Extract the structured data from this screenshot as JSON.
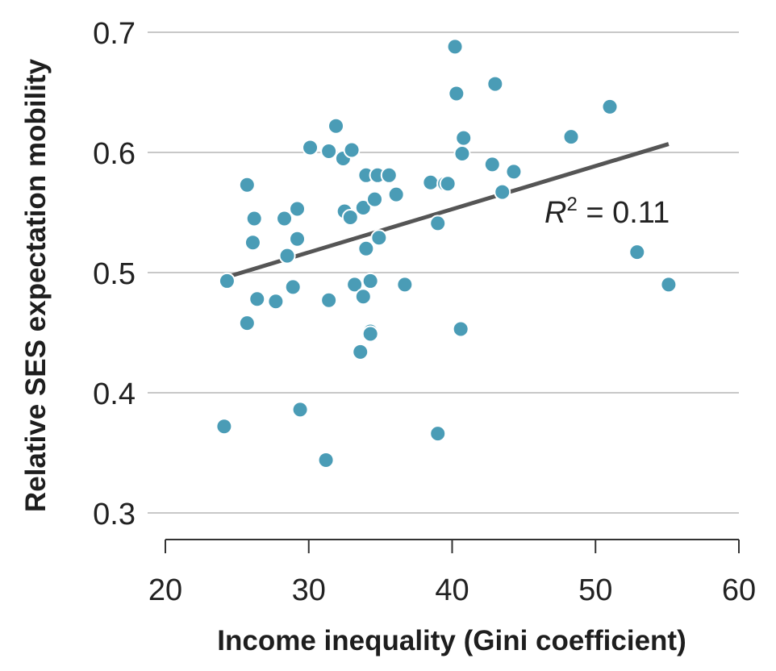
{
  "chart_data": {
    "type": "scatter",
    "xlabel": "Income inequality (Gini coefficient)",
    "ylabel": "Relative SES expectation mobility",
    "xlim": [
      20,
      60
    ],
    "ylim": [
      0.3,
      0.7
    ],
    "x_ticks": [
      "20",
      "30",
      "40",
      "50",
      "60"
    ],
    "y_ticks": [
      "0.3",
      "0.4",
      "0.5",
      "0.6",
      "0.7"
    ],
    "grid": "horizontal",
    "point_color": "#4a9cb6",
    "line_color": "#555555",
    "points": [
      {
        "x": 24.1,
        "y": 0.372
      },
      {
        "x": 24.3,
        "y": 0.493
      },
      {
        "x": 25.7,
        "y": 0.458
      },
      {
        "x": 25.7,
        "y": 0.573
      },
      {
        "x": 26.1,
        "y": 0.525
      },
      {
        "x": 26.2,
        "y": 0.545
      },
      {
        "x": 26.4,
        "y": 0.478
      },
      {
        "x": 27.7,
        "y": 0.476
      },
      {
        "x": 28.3,
        "y": 0.545
      },
      {
        "x": 28.5,
        "y": 0.514
      },
      {
        "x": 28.9,
        "y": 0.488
      },
      {
        "x": 29.2,
        "y": 0.528
      },
      {
        "x": 29.2,
        "y": 0.553
      },
      {
        "x": 29.4,
        "y": 0.386
      },
      {
        "x": 30.1,
        "y": 0.604
      },
      {
        "x": 31.2,
        "y": 0.344
      },
      {
        "x": 31.4,
        "y": 0.477
      },
      {
        "x": 31.4,
        "y": 0.601
      },
      {
        "x": 31.9,
        "y": 0.622
      },
      {
        "x": 32.4,
        "y": 0.595
      },
      {
        "x": 32.5,
        "y": 0.551
      },
      {
        "x": 32.9,
        "y": 0.546
      },
      {
        "x": 33.0,
        "y": 0.602
      },
      {
        "x": 33.2,
        "y": 0.49
      },
      {
        "x": 33.6,
        "y": 0.434
      },
      {
        "x": 33.8,
        "y": 0.48
      },
      {
        "x": 33.8,
        "y": 0.554
      },
      {
        "x": 34.0,
        "y": 0.52
      },
      {
        "x": 34.0,
        "y": 0.581
      },
      {
        "x": 34.3,
        "y": 0.451
      },
      {
        "x": 34.3,
        "y": 0.449
      },
      {
        "x": 34.3,
        "y": 0.493
      },
      {
        "x": 34.6,
        "y": 0.561
      },
      {
        "x": 34.8,
        "y": 0.581
      },
      {
        "x": 34.9,
        "y": 0.529
      },
      {
        "x": 35.6,
        "y": 0.581
      },
      {
        "x": 36.1,
        "y": 0.565
      },
      {
        "x": 36.7,
        "y": 0.49
      },
      {
        "x": 38.5,
        "y": 0.575
      },
      {
        "x": 39.0,
        "y": 0.366
      },
      {
        "x": 39.0,
        "y": 0.541
      },
      {
        "x": 39.5,
        "y": 0.574
      },
      {
        "x": 39.7,
        "y": 0.574
      },
      {
        "x": 40.2,
        "y": 0.688
      },
      {
        "x": 40.3,
        "y": 0.649
      },
      {
        "x": 40.6,
        "y": 0.453
      },
      {
        "x": 40.7,
        "y": 0.599
      },
      {
        "x": 40.8,
        "y": 0.612
      },
      {
        "x": 42.8,
        "y": 0.59
      },
      {
        "x": 43.0,
        "y": 0.657
      },
      {
        "x": 43.5,
        "y": 0.567
      },
      {
        "x": 44.3,
        "y": 0.584
      },
      {
        "x": 48.3,
        "y": 0.613
      },
      {
        "x": 51.0,
        "y": 0.638
      },
      {
        "x": 52.9,
        "y": 0.517
      },
      {
        "x": 55.1,
        "y": 0.49
      }
    ],
    "fit_line": {
      "x": [
        24.2,
        55.1
      ],
      "y": [
        0.496,
        0.607
      ]
    },
    "annotation": {
      "italic": "R",
      "superscript": "2",
      "text": " = 0.11"
    }
  }
}
